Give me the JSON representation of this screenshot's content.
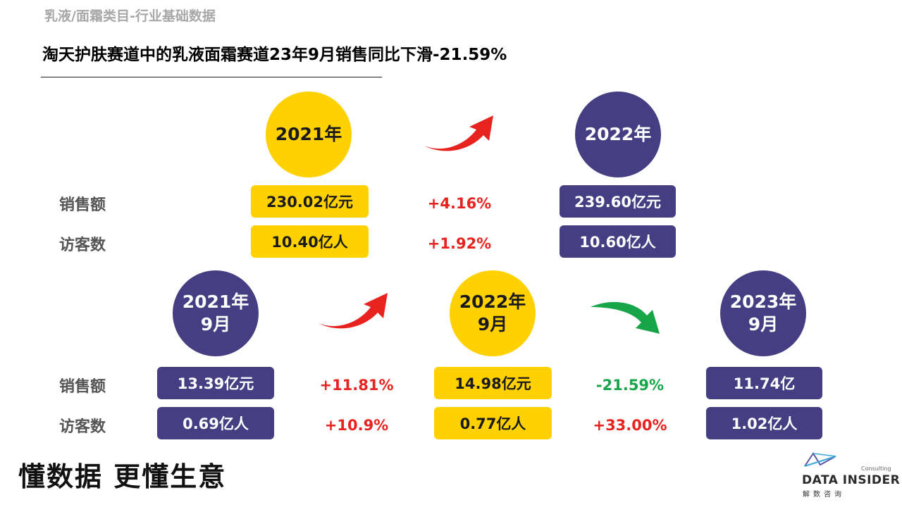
{
  "header": {
    "section_label": "乳液/面霜类目-行业基础数据",
    "headline": "淘天护肤赛道中的乳液面霜赛道23年9月销售同比下滑-21.59%"
  },
  "row_labels": {
    "sales": "销售额",
    "visitors": "访客数"
  },
  "annual": {
    "year_2021": {
      "label": "2021年",
      "sales": "230.02亿元",
      "visitors": "10.40亿人"
    },
    "year_2022": {
      "label": "2022年",
      "sales": "239.60亿元",
      "visitors": "10.60亿人"
    },
    "change": {
      "sales": "+4.16%",
      "visitors": "+1.92%"
    }
  },
  "september": {
    "sep_2021": {
      "label": "2021年\n9月",
      "sales": "13.39亿元",
      "visitors": "0.69亿人"
    },
    "sep_2022": {
      "label": "2022年\n9月",
      "sales": "14.98亿元",
      "visitors": "0.77亿人"
    },
    "sep_2023": {
      "label": "2023年\n9月",
      "sales": "11.74亿",
      "visitors": "1.02亿人"
    },
    "change_21_22": {
      "sales": "+11.81%",
      "visitors": "+10.9%"
    },
    "change_22_23": {
      "sales": "-21.59%",
      "visitors": "+33.00%"
    }
  },
  "footer": {
    "slogan": "懂数据 更懂生意",
    "logo_name": "DATA INSIDER",
    "logo_sub": "解数咨询",
    "logo_consulting": "Consulting"
  },
  "colors": {
    "yellow": "#ffd100",
    "navy": "#463e82",
    "increase": "#e8221e",
    "decrease": "#17a54a"
  },
  "icons": {
    "arrow_up": "curved-arrow-up-icon",
    "arrow_down": "curved-arrow-down-icon"
  }
}
